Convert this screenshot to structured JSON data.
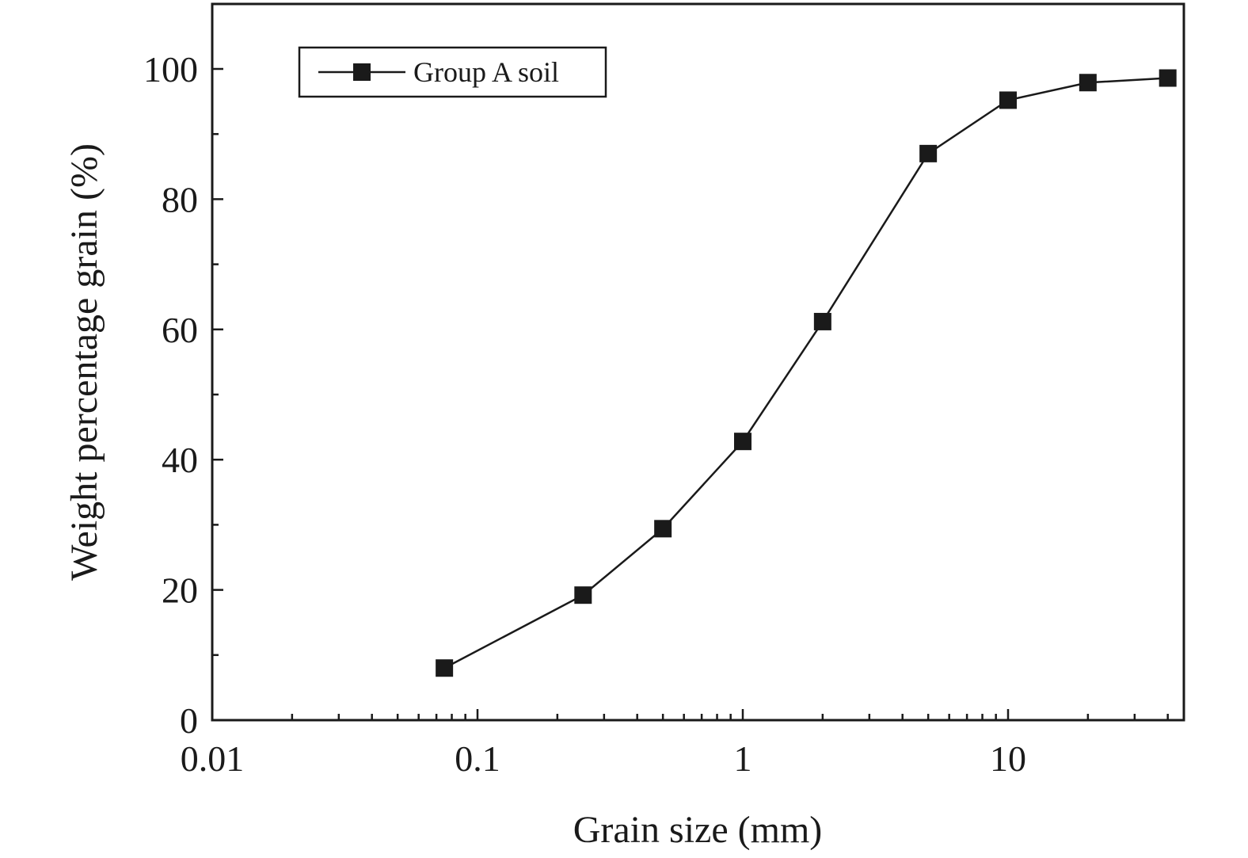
{
  "chart_data": {
    "type": "line",
    "xscale": "log",
    "xlabel": "Grain size (mm)",
    "ylabel": "Weight percentage grain (%)",
    "xlim": [
      0.01,
      40
    ],
    "ylim": [
      0,
      100
    ],
    "x_ticks": [
      0.01,
      0.1,
      1,
      10
    ],
    "x_tick_labels": [
      "0.01",
      "0.1",
      "1",
      "10"
    ],
    "y_ticks": [
      0,
      20,
      40,
      60,
      80,
      100
    ],
    "y_tick_labels": [
      "0",
      "20",
      "40",
      "60",
      "80",
      "100"
    ],
    "legend_position": "top-left",
    "grid": false,
    "series": [
      {
        "name": "Group A soil",
        "marker": "square",
        "color": "#1a1a1a",
        "x": [
          0.075,
          0.25,
          0.5,
          1,
          2,
          5,
          10,
          20,
          40
        ],
        "y": [
          8,
          19.2,
          29.4,
          42.8,
          61.2,
          87,
          95.2,
          97.9,
          98.6
        ]
      }
    ]
  }
}
